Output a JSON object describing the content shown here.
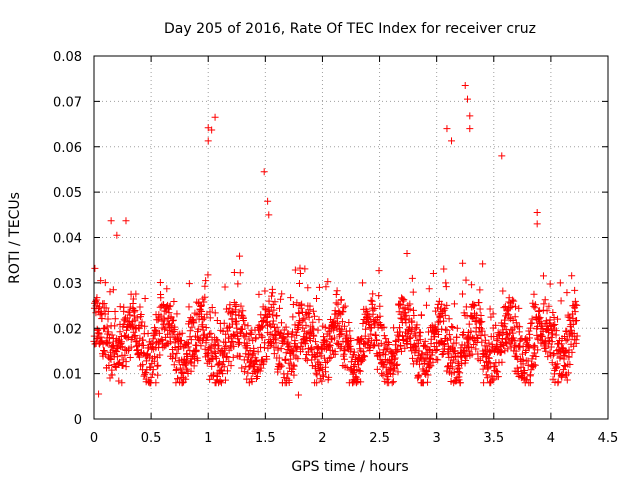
{
  "chart_data": {
    "type": "scatter",
    "title": "Day 205 of 2016, Rate Of TEC Index for receiver cruz",
    "xlabel": "GPS time / hours",
    "ylabel": "ROTI / TECUs",
    "xlim": [
      0,
      4.5
    ],
    "ylim": [
      0,
      0.08
    ],
    "x_ticks": [
      0,
      0.5,
      1,
      1.5,
      2,
      2.5,
      3,
      3.5,
      4,
      4.5
    ],
    "x_tick_labels": [
      "0",
      "0.5",
      "1",
      "1.5",
      "2",
      "2.5",
      "3",
      "3.5",
      "4",
      "4.5"
    ],
    "y_ticks": [
      0,
      0.01,
      0.02,
      0.03,
      0.04,
      0.05,
      0.06,
      0.07,
      0.08
    ],
    "y_tick_labels": [
      "0",
      "0.01",
      "0.02",
      "0.03",
      "0.04",
      "0.05",
      "0.06",
      "0.07",
      "0.08"
    ],
    "grid": true,
    "marker": "+",
    "series": [
      {
        "name": "ROTI",
        "color": "#ff0000",
        "x_range": [
          0,
          4.23
        ],
        "typical_range": [
          0.008,
          0.03
        ],
        "notable_points": [
          {
            "x": 0.04,
            "y": 0.0055
          },
          {
            "x": 0.15,
            "y": 0.0437
          },
          {
            "x": 0.2,
            "y": 0.0405
          },
          {
            "x": 0.28,
            "y": 0.0437
          },
          {
            "x": 1.0,
            "y": 0.0642
          },
          {
            "x": 1.0,
            "y": 0.0613
          },
          {
            "x": 1.03,
            "y": 0.0637
          },
          {
            "x": 1.06,
            "y": 0.0665
          },
          {
            "x": 1.49,
            "y": 0.0545
          },
          {
            "x": 1.52,
            "y": 0.048
          },
          {
            "x": 1.53,
            "y": 0.045
          },
          {
            "x": 1.79,
            "y": 0.0053
          },
          {
            "x": 3.09,
            "y": 0.064
          },
          {
            "x": 3.13,
            "y": 0.0613
          },
          {
            "x": 3.25,
            "y": 0.0735
          },
          {
            "x": 3.27,
            "y": 0.0705
          },
          {
            "x": 3.29,
            "y": 0.0668
          },
          {
            "x": 3.29,
            "y": 0.064
          },
          {
            "x": 3.57,
            "y": 0.058
          },
          {
            "x": 3.88,
            "y": 0.0455
          },
          {
            "x": 3.88,
            "y": 0.043
          }
        ]
      }
    ]
  }
}
